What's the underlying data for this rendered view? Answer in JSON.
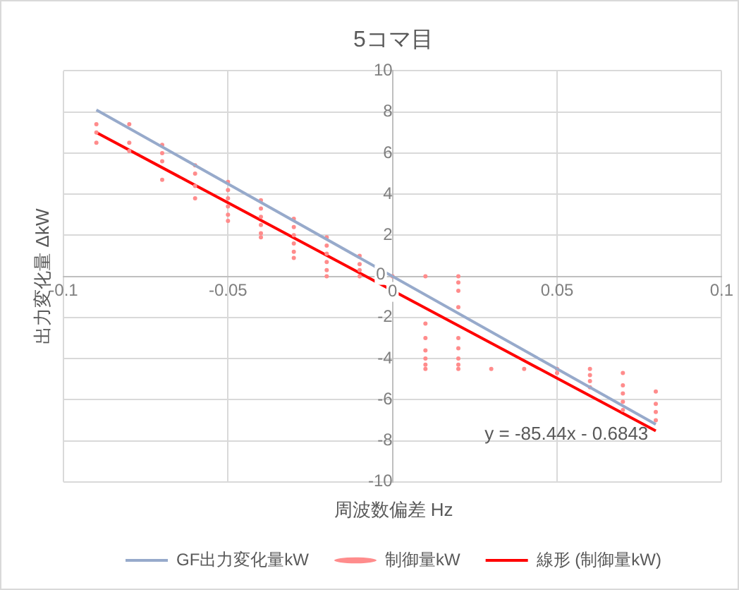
{
  "chart_data": {
    "type": "scatter",
    "title": "5コマ目",
    "xlabel": "周波数偏差 Hz",
    "ylabel": "出力変化量 ΔkW",
    "xlim": [
      -0.1,
      0.1
    ],
    "xticks": [
      -0.1,
      -0.05,
      0,
      0.05,
      0.1
    ],
    "ylim": [
      -10,
      10
    ],
    "yticks": [
      -10,
      -8,
      -6,
      -4,
      -2,
      0,
      2,
      4,
      6,
      8,
      10
    ],
    "grid": true,
    "legend": "bottom",
    "annotations": [
      "y = -85.44x - 0.6843"
    ],
    "series": [
      {
        "name": "GF出力変化量kW",
        "type": "line",
        "marker": "none",
        "color": "#97aacb",
        "x": [
          -0.09,
          0.08
        ],
        "values": [
          8.1,
          -7.2
        ]
      },
      {
        "name": "制御量kW",
        "type": "scatter",
        "marker": "circle",
        "color": "#ff8c8c",
        "x": [
          -0.09,
          -0.09,
          -0.09,
          -0.08,
          -0.08,
          -0.08,
          -0.07,
          -0.07,
          -0.07,
          -0.07,
          -0.06,
          -0.06,
          -0.06,
          -0.06,
          -0.05,
          -0.05,
          -0.05,
          -0.05,
          -0.05,
          -0.05,
          -0.04,
          -0.04,
          -0.04,
          -0.04,
          -0.04,
          -0.04,
          -0.03,
          -0.03,
          -0.03,
          -0.03,
          -0.03,
          -0.03,
          -0.02,
          -0.02,
          -0.02,
          -0.02,
          -0.02,
          -0.02,
          -0.01,
          -0.01,
          -0.01,
          -0.01,
          0,
          0.01,
          0.01,
          0.01,
          0.01,
          0.01,
          0.01,
          0.01,
          0.02,
          0.02,
          0.02,
          0.02,
          0.02,
          0.02,
          0.02,
          0.02,
          0.02,
          0.03,
          0.04,
          0.05,
          0.05,
          0.06,
          0.06,
          0.06,
          0.06,
          0.07,
          0.07,
          0.07,
          0.07,
          0.07,
          0.08,
          0.08,
          0.08,
          0.08
        ],
        "values": [
          7.4,
          7.0,
          6.5,
          7.4,
          6.5,
          6.1,
          6.4,
          6.0,
          5.6,
          4.7,
          5.4,
          5.0,
          4.4,
          3.8,
          4.6,
          4.2,
          3.8,
          3.4,
          3.0,
          2.7,
          3.7,
          3.3,
          2.9,
          2.5,
          2.1,
          1.9,
          2.8,
          2.4,
          2.0,
          1.6,
          1.2,
          0.9,
          1.9,
          1.5,
          1.1,
          0.7,
          0.3,
          0,
          1.0,
          0.6,
          0.3,
          0,
          0,
          0,
          -2.3,
          -3.0,
          -3.6,
          -4.0,
          -4.3,
          -4.5,
          0,
          -0.3,
          -0.7,
          -1.5,
          -3.0,
          -3.5,
          -4.0,
          -4.3,
          -4.5,
          -4.5,
          -4.5,
          -4.5,
          -4.7,
          -4.5,
          -4.8,
          -5.1,
          -5.4,
          -4.7,
          -5.3,
          -5.7,
          -6.1,
          -6.5,
          -5.6,
          -6.2,
          -6.6,
          -7.0
        ]
      },
      {
        "name": "線形 (制御量kW)",
        "type": "line",
        "marker": "none",
        "color": "#ff0000",
        "x": [
          -0.09,
          0.08
        ],
        "values": [
          7.0,
          -7.52
        ]
      }
    ]
  }
}
